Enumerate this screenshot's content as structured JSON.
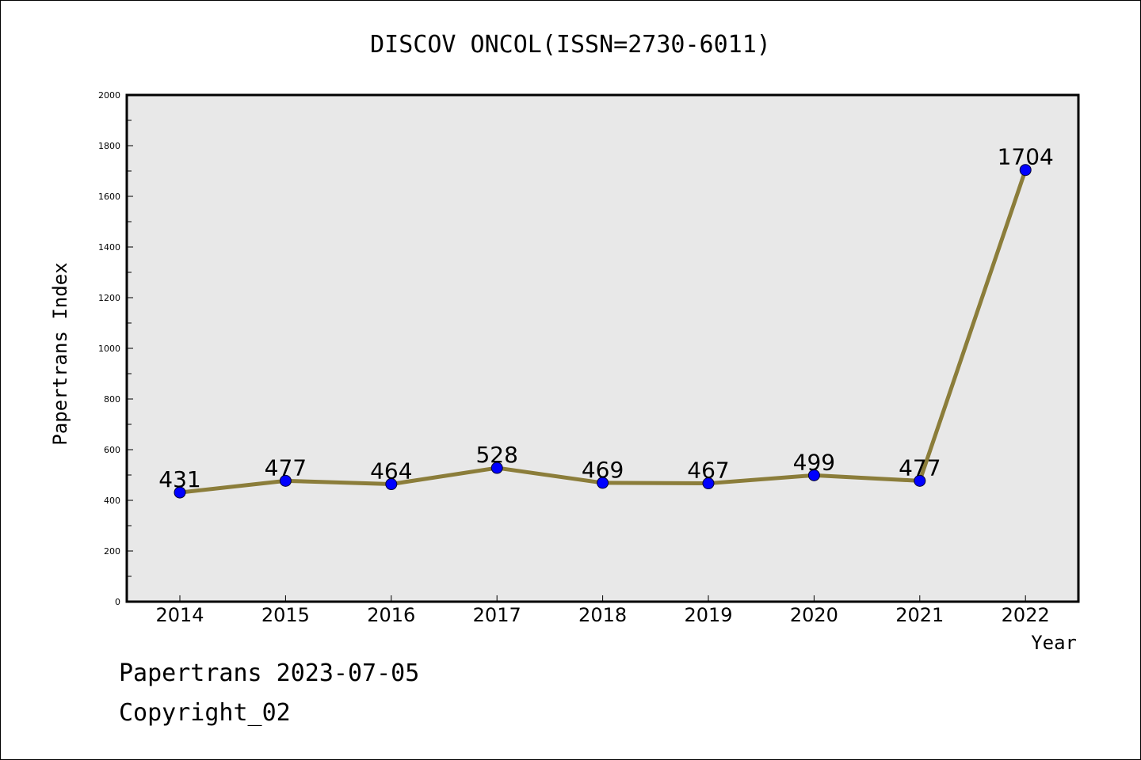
{
  "chart_data": {
    "type": "line",
    "title": "DISCOV ONCOL(ISSN=2730-6011)",
    "xlabel": "Year",
    "ylabel": "Papertrans Index",
    "categories": [
      "2014",
      "2015",
      "2016",
      "2017",
      "2018",
      "2019",
      "2020",
      "2021",
      "2022"
    ],
    "series": [
      {
        "values": [
          431,
          477,
          464,
          528,
          469,
          467,
          499,
          477,
          1704
        ],
        "line_color": "#8b7d3a",
        "marker_color": "#0000ff"
      }
    ],
    "data_labels": [
      "431",
      "477",
      "464",
      "528",
      "469",
      "467",
      "499",
      "477",
      "1704"
    ],
    "ylim": [
      0,
      2000
    ],
    "y_ticks": [
      "0",
      "200",
      "400",
      "600",
      "800",
      "1000",
      "1200",
      "1400",
      "1600",
      "1800",
      "2000"
    ],
    "grid": false,
    "legend": "none",
    "plot_background": "#e8e8e8"
  },
  "footer": {
    "line1": "Papertrans 2023-07-05",
    "line2": "Copyright_02"
  }
}
